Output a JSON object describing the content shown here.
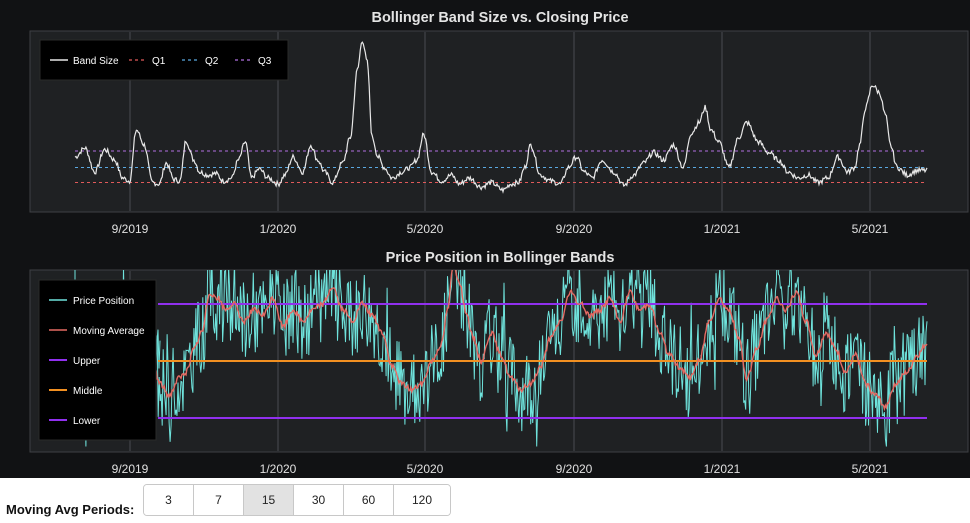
{
  "chart_data": [
    {
      "type": "line",
      "title": "Bollinger Band Size vs. Closing Price",
      "x_tick_labels": [
        "9/2019",
        "1/2020",
        "5/2020",
        "9/2020",
        "1/2021",
        "5/2021"
      ],
      "xlabel": "",
      "ylabel": "",
      "grid": true,
      "legend_position": "top-left",
      "series": [
        {
          "name": "Band Size",
          "color": "#e8e8e8",
          "style": "solid",
          "anchors": [
            [
              0,
              0.22
            ],
            [
              10,
              0.28
            ],
            [
              20,
              0.12
            ],
            [
              30,
              0.27
            ],
            [
              40,
              0.2
            ],
            [
              48,
              0.08
            ],
            [
              55,
              0.06
            ],
            [
              62,
              0.4
            ],
            [
              70,
              0.3
            ],
            [
              78,
              0.05
            ],
            [
              85,
              0.04
            ],
            [
              92,
              0.18
            ],
            [
              100,
              0.07
            ],
            [
              106,
              0.06
            ],
            [
              112,
              0.33
            ],
            [
              120,
              0.2
            ],
            [
              126,
              0.12
            ],
            [
              134,
              0.1
            ],
            [
              142,
              0.11
            ],
            [
              150,
              0.06
            ],
            [
              158,
              0.08
            ],
            [
              165,
              0.2
            ],
            [
              172,
              0.32
            ],
            [
              178,
              0.08
            ],
            [
              186,
              0.14
            ],
            [
              195,
              0.08
            ],
            [
              205,
              0.04
            ],
            [
              212,
              0.1
            ],
            [
              220,
              0.22
            ],
            [
              230,
              0.12
            ],
            [
              238,
              0.3
            ],
            [
              245,
              0.2
            ],
            [
              252,
              0.12
            ],
            [
              260,
              0.05
            ],
            [
              270,
              0.18
            ],
            [
              278,
              0.35
            ],
            [
              285,
              0.8
            ],
            [
              290,
              1.0
            ],
            [
              295,
              0.85
            ],
            [
              300,
              0.35
            ],
            [
              306,
              0.22
            ],
            [
              312,
              0.15
            ],
            [
              320,
              0.08
            ],
            [
              330,
              0.12
            ],
            [
              338,
              0.15
            ],
            [
              345,
              0.2
            ],
            [
              352,
              0.37
            ],
            [
              360,
              0.12
            ],
            [
              370,
              0.06
            ],
            [
              380,
              0.1
            ],
            [
              388,
              0.04
            ],
            [
              398,
              0.08
            ],
            [
              410,
              0.02
            ],
            [
              420,
              0.05
            ],
            [
              432,
              0.0
            ],
            [
              440,
              0.04
            ],
            [
              448,
              0.05
            ],
            [
              454,
              0.15
            ],
            [
              460,
              0.3
            ],
            [
              470,
              0.1
            ],
            [
              480,
              0.06
            ],
            [
              490,
              0.04
            ],
            [
              498,
              0.15
            ],
            [
              506,
              0.22
            ],
            [
              514,
              0.12
            ],
            [
              522,
              0.08
            ],
            [
              532,
              0.2
            ],
            [
              544,
              0.12
            ],
            [
              554,
              0.03
            ],
            [
              564,
              0.1
            ],
            [
              574,
              0.18
            ],
            [
              584,
              0.25
            ],
            [
              594,
              0.2
            ],
            [
              604,
              0.3
            ],
            [
              614,
              0.15
            ],
            [
              622,
              0.38
            ],
            [
              630,
              0.45
            ],
            [
              636,
              0.55
            ],
            [
              642,
              0.4
            ],
            [
              650,
              0.32
            ],
            [
              660,
              0.15
            ],
            [
              670,
              0.35
            ],
            [
              678,
              0.45
            ],
            [
              690,
              0.32
            ],
            [
              700,
              0.25
            ],
            [
              710,
              0.2
            ],
            [
              720,
              0.12
            ],
            [
              730,
              0.08
            ],
            [
              740,
              0.1
            ],
            [
              750,
              0.05
            ],
            [
              760,
              0.08
            ],
            [
              770,
              0.22
            ],
            [
              780,
              0.12
            ],
            [
              787,
              0.15
            ],
            [
              792,
              0.3
            ],
            [
              798,
              0.55
            ],
            [
              805,
              0.7
            ],
            [
              812,
              0.65
            ],
            [
              818,
              0.5
            ],
            [
              823,
              0.3
            ],
            [
              830,
              0.15
            ],
            [
              840,
              0.1
            ],
            [
              850,
              0.13
            ]
          ]
        },
        {
          "name": "Q1",
          "color": "#e05a5a",
          "style": "dashed",
          "value": 0.05
        },
        {
          "name": "Q2",
          "color": "#5aa8e0",
          "style": "dashed",
          "value": 0.15
        },
        {
          "name": "Q3",
          "color": "#b070e0",
          "style": "dashed",
          "value": 0.26
        }
      ]
    },
    {
      "type": "line",
      "title": "Price Position in Bollinger Bands",
      "x_tick_labels": [
        "9/2019",
        "1/2020",
        "5/2020",
        "9/2020",
        "1/2021",
        "5/2021"
      ],
      "xlabel": "",
      "ylabel": "",
      "grid": true,
      "legend_position": "left",
      "ylim": [
        -0.25,
        1.6
      ],
      "series": [
        {
          "name": "Price Position",
          "color": "#6fe3dc",
          "style": "solid",
          "note": "noisy daily series oscillating roughly between -0.2 and 1.5"
        },
        {
          "name": "Moving Average",
          "color": "#e56a63",
          "style": "solid",
          "anchors": [
            [
              0,
              0.6
            ],
            [
              10,
              0.3
            ],
            [
              20,
              0.45
            ],
            [
              30,
              0.25
            ],
            [
              40,
              0.6
            ],
            [
              48,
              1.0
            ],
            [
              55,
              0.7
            ],
            [
              62,
              0.55
            ],
            [
              70,
              0.35
            ],
            [
              78,
              0.5
            ],
            [
              86,
              0.3
            ],
            [
              95,
              0.2
            ],
            [
              105,
              0.35
            ],
            [
              112,
              0.4
            ],
            [
              120,
              0.6
            ],
            [
              128,
              0.75
            ],
            [
              136,
              1.1
            ],
            [
              144,
              1.05
            ],
            [
              152,
              0.95
            ],
            [
              160,
              1.0
            ],
            [
              170,
              0.85
            ],
            [
              180,
              0.95
            ],
            [
              190,
              0.9
            ],
            [
              200,
              1.05
            ],
            [
              210,
              0.8
            ],
            [
              220,
              0.95
            ],
            [
              230,
              0.85
            ],
            [
              240,
              0.95
            ],
            [
              250,
              1.0
            ],
            [
              260,
              1.15
            ],
            [
              270,
              0.95
            ],
            [
              280,
              0.85
            ],
            [
              290,
              1.0
            ],
            [
              300,
              0.9
            ],
            [
              310,
              0.75
            ],
            [
              320,
              0.45
            ],
            [
              330,
              0.3
            ],
            [
              340,
              0.25
            ],
            [
              350,
              0.3
            ],
            [
              360,
              0.5
            ],
            [
              370,
              0.65
            ],
            [
              376,
              0.95
            ],
            [
              382,
              1.35
            ],
            [
              388,
              1.2
            ],
            [
              394,
              0.95
            ],
            [
              402,
              0.7
            ],
            [
              410,
              0.5
            ],
            [
              420,
              0.75
            ],
            [
              430,
              0.55
            ],
            [
              440,
              0.35
            ],
            [
              450,
              0.25
            ],
            [
              460,
              0.3
            ],
            [
              470,
              0.45
            ],
            [
              480,
              0.7
            ],
            [
              490,
              0.85
            ],
            [
              500,
              1.1
            ],
            [
              510,
              1.0
            ],
            [
              520,
              0.9
            ],
            [
              530,
              0.95
            ],
            [
              540,
              1.05
            ],
            [
              550,
              0.85
            ],
            [
              560,
              1.1
            ],
            [
              570,
              0.95
            ],
            [
              580,
              1.0
            ],
            [
              590,
              0.75
            ],
            [
              600,
              0.55
            ],
            [
              610,
              0.45
            ],
            [
              620,
              0.35
            ],
            [
              630,
              0.5
            ],
            [
              640,
              0.85
            ],
            [
              650,
              1.05
            ],
            [
              660,
              0.95
            ],
            [
              670,
              0.7
            ],
            [
              678,
              0.35
            ],
            [
              688,
              0.6
            ],
            [
              698,
              0.85
            ],
            [
              708,
              1.05
            ],
            [
              718,
              0.95
            ],
            [
              728,
              1.1
            ],
            [
              738,
              0.85
            ],
            [
              748,
              0.55
            ],
            [
              758,
              0.75
            ],
            [
              768,
              0.6
            ],
            [
              778,
              0.4
            ],
            [
              788,
              0.55
            ],
            [
              798,
              0.3
            ],
            [
              808,
              0.2
            ],
            [
              818,
              0.1
            ],
            [
              828,
              0.3
            ],
            [
              840,
              0.4
            ],
            [
              850,
              0.55
            ],
            [
              860,
              0.65
            ]
          ]
        },
        {
          "name": "Upper",
          "color": "#9030ee",
          "style": "solid",
          "value": 1.0
        },
        {
          "name": "Middle",
          "color": "#f29021",
          "style": "solid",
          "value": 0.5
        },
        {
          "name": "Lower",
          "color": "#9030ee",
          "style": "solid",
          "value": 0.0
        }
      ]
    }
  ],
  "controls": {
    "label": "Moving Avg Periods:",
    "options": [
      "3",
      "7",
      "15",
      "30",
      "60",
      "120"
    ],
    "selected": "15"
  }
}
